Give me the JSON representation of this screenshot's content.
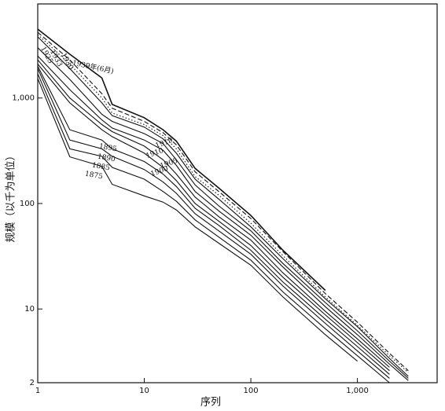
{
  "chart_data": {
    "type": "line",
    "log_x": true,
    "log_y": true,
    "x_label": "序列",
    "y_label": "规模（以千为单位）",
    "xlim": [
      1,
      5600
    ],
    "ylim": [
      2,
      7800
    ],
    "xticks": [
      1,
      10,
      100,
      {
        "value": 1000,
        "label": "1,000"
      }
    ],
    "yticks": [
      2,
      10,
      100,
      {
        "value": 1000,
        "label": "1,000"
      }
    ],
    "x": [
      1,
      2,
      4,
      5,
      10,
      15,
      20,
      30,
      50,
      100,
      200,
      500,
      1000,
      2000,
      3000
    ],
    "series": [
      {
        "name": "1939年(6月)",
        "color": "#111",
        "line_style": "solid",
        "values": [
          4500,
          2600,
          1550,
          870,
          650,
          500,
          390,
          215,
          140,
          77,
          36,
          15,
          null,
          null,
          null
        ]
      },
      {
        "name": "1933",
        "color": "#111",
        "line_style": "dashed",
        "values": [
          4200,
          2300,
          1100,
          800,
          600,
          470,
          360,
          200,
          130,
          72,
          35,
          14,
          7.5,
          3.8,
          2.6
        ]
      },
      {
        "name": "1930",
        "color": "#111",
        "line_style": "dotted",
        "values": [
          4000,
          2100,
          1000,
          720,
          560,
          440,
          330,
          180,
          120,
          65,
          32,
          13,
          7,
          3.6,
          2.5
        ]
      },
      {
        "name": "1925",
        "color": "#111",
        "line_style": "solid",
        "values": [
          3800,
          1900,
          900,
          680,
          530,
          410,
          300,
          170,
          110,
          60,
          30,
          12.5,
          6.8,
          3.4,
          2.3
        ]
      },
      {
        "name": "1919",
        "color": "#111",
        "line_style": "solid",
        "values": [
          3000,
          1500,
          700,
          600,
          460,
          370,
          260,
          150,
          95,
          55,
          27,
          11.5,
          6.2,
          3.2,
          2.2
        ]
      },
      {
        "name": "1910",
        "color": "#111",
        "line_style": "solid",
        "values": [
          2500,
          1200,
          620,
          520,
          400,
          320,
          230,
          130,
          85,
          50,
          25,
          10.5,
          5.7,
          3,
          2.1
        ]
      },
      {
        "name": "1905",
        "color": "#111",
        "line_style": "solid",
        "values": [
          2300,
          1000,
          560,
          480,
          350,
          260,
          190,
          115,
          75,
          45,
          22,
          9.5,
          5.2,
          2.8,
          null
        ]
      },
      {
        "name": "1900",
        "color": "#111",
        "line_style": "solid",
        "values": [
          2100,
          900,
          500,
          430,
          300,
          220,
          165,
          100,
          68,
          40,
          20,
          8.8,
          4.8,
          2.6,
          null
        ]
      },
      {
        "name": "1895",
        "color": "#111",
        "line_style": "solid",
        "values": [
          2000,
          500,
          400,
          330,
          250,
          190,
          145,
          90,
          62,
          36,
          18,
          8,
          4.4,
          2.4,
          null
        ]
      },
      {
        "name": "1890",
        "color": "#111",
        "line_style": "solid",
        "values": [
          1900,
          400,
          330,
          280,
          210,
          160,
          125,
          80,
          55,
          33,
          16.5,
          7.3,
          4,
          2.2,
          null
        ]
      },
      {
        "name": "1885",
        "color": "#111",
        "line_style": "solid",
        "values": [
          1700,
          330,
          280,
          220,
          170,
          130,
          105,
          70,
          48,
          29,
          14.5,
          6.5,
          3.6,
          2,
          null
        ]
      },
      {
        "name": "1875",
        "color": "#111",
        "line_style": "solid",
        "values": [
          1530,
          277,
          225,
          152,
          118,
          103,
          87,
          60,
          42,
          26,
          13,
          5.7,
          3.2,
          null,
          null
        ]
      }
    ]
  }
}
